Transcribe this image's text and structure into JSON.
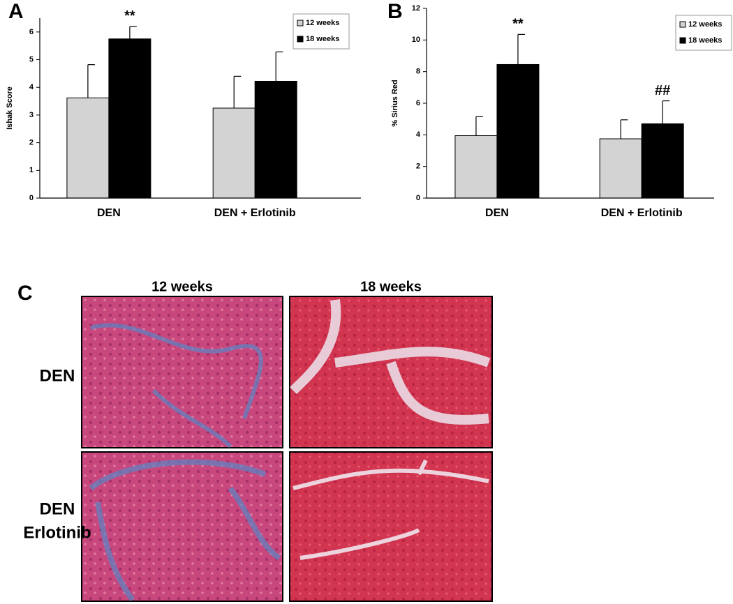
{
  "chart_data": [
    {
      "type": "bar",
      "panel_label": "A",
      "y_label": "Ishak Score",
      "categories": [
        "DEN",
        "DEN + Erlotinib"
      ],
      "series": [
        {
          "name": "12 weeks",
          "color": "#d3d3d3",
          "values": [
            3.62,
            3.25
          ],
          "errors": [
            1.2,
            1.15
          ]
        },
        {
          "name": "18 weeks",
          "color": "#000000",
          "values": [
            5.75,
            4.22
          ],
          "errors": [
            0.45,
            1.06
          ],
          "annotations": [
            "**",
            null
          ]
        }
      ],
      "ylim": [
        0,
        6.5
      ],
      "yticks": [
        0,
        1,
        2,
        3,
        4,
        5,
        6
      ]
    },
    {
      "type": "bar",
      "panel_label": "B",
      "y_label": "% Sirius Red",
      "categories": [
        "DEN",
        "DEN + Erlotinib"
      ],
      "series": [
        {
          "name": "12 weeks",
          "color": "#d3d3d3",
          "values": [
            3.95,
            3.75
          ],
          "errors": [
            1.2,
            1.2
          ]
        },
        {
          "name": "18 weeks",
          "color": "#000000",
          "values": [
            8.45,
            4.7
          ],
          "errors": [
            1.9,
            1.45
          ],
          "annotations": [
            "**",
            "##"
          ]
        }
      ],
      "ylim": [
        0,
        12
      ],
      "yticks": [
        0,
        2,
        4,
        6,
        8,
        10,
        12
      ]
    }
  ],
  "panel_c": {
    "label": "C",
    "columns": [
      "12 weeks",
      "18 weeks"
    ],
    "rows": [
      [
        "DEN"
      ],
      [
        "DEN",
        "Erlotinib"
      ]
    ]
  }
}
